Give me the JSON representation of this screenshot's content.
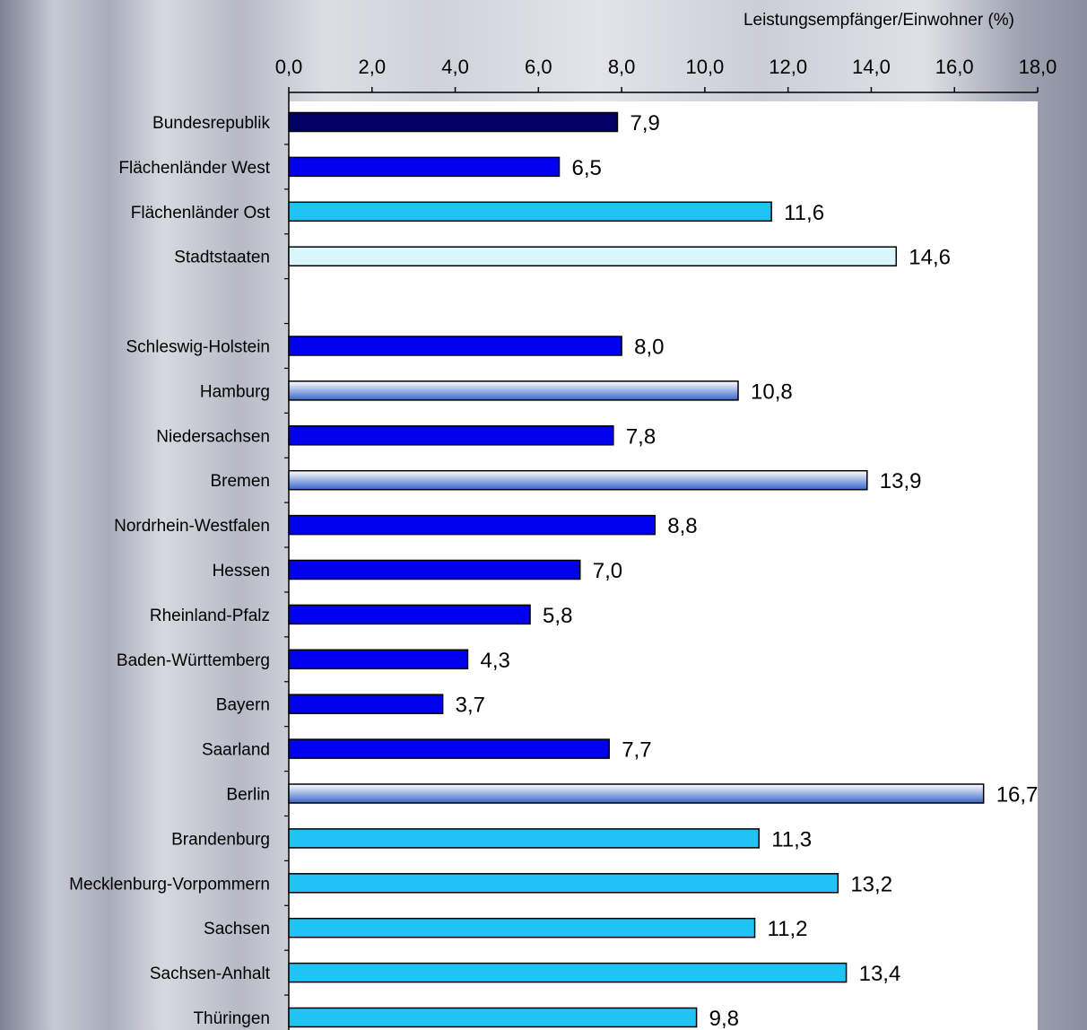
{
  "chart_data": {
    "type": "bar",
    "orientation": "horizontal",
    "title": "",
    "axis_title": "Leistungsempfänger/Einwohner (%)",
    "xlim": [
      0,
      18
    ],
    "x_ticks": [
      "0,0",
      "2,0",
      "4,0",
      "6,0",
      "8,0",
      "10,0",
      "12,0",
      "14,0",
      "16,0",
      "18,0"
    ],
    "grid": false,
    "legend": "none",
    "categories": [
      "Bundesrepublik",
      "Flächenländer West",
      "Flächenländer Ost",
      "Stadtstaaten",
      "",
      "Schleswig-Holstein",
      "Hamburg",
      "Niedersachsen",
      "Bremen",
      "Nordrhein-Westfalen",
      "Hessen",
      "Rheinland-Pfalz",
      "Baden-Württemberg",
      "Bayern",
      "Saarland",
      "Berlin",
      "Brandenburg",
      "Mecklenburg-Vorpommern",
      "Sachsen",
      "Sachsen-Anhalt",
      "Thüringen"
    ],
    "values": [
      7.9,
      6.5,
      11.6,
      14.6,
      null,
      8.0,
      10.8,
      7.8,
      13.9,
      8.8,
      7.0,
      5.8,
      4.3,
      3.7,
      7.7,
      16.7,
      11.3,
      13.2,
      11.2,
      13.4,
      9.8
    ],
    "value_labels": [
      "7,9",
      "6,5",
      "11,6",
      "14,6",
      "",
      "8,0",
      "10,8",
      "7,8",
      "13,9",
      "8,8",
      "7,0",
      "5,8",
      "4,3",
      "3,7",
      "7,7",
      "16,7",
      "11,3",
      "13,2",
      "11,2",
      "13,4",
      "9,8"
    ],
    "bar_styles": [
      "federal",
      "west",
      "east",
      "city",
      "",
      "west",
      "city-gradient",
      "west",
      "city-gradient",
      "west",
      "west",
      "west",
      "west",
      "west",
      "west",
      "city-gradient",
      "east",
      "east",
      "east",
      "east",
      "east"
    ],
    "colors": {
      "federal": "#000066",
      "west": "#0000ee",
      "east": "#1fc4f4",
      "city": "#d8f6fb",
      "city_gradient_top": "#ffffff",
      "city_gradient_bottom": "#3a66c8",
      "plot_background": "#ffffff",
      "bar_outline": "#000000"
    }
  }
}
